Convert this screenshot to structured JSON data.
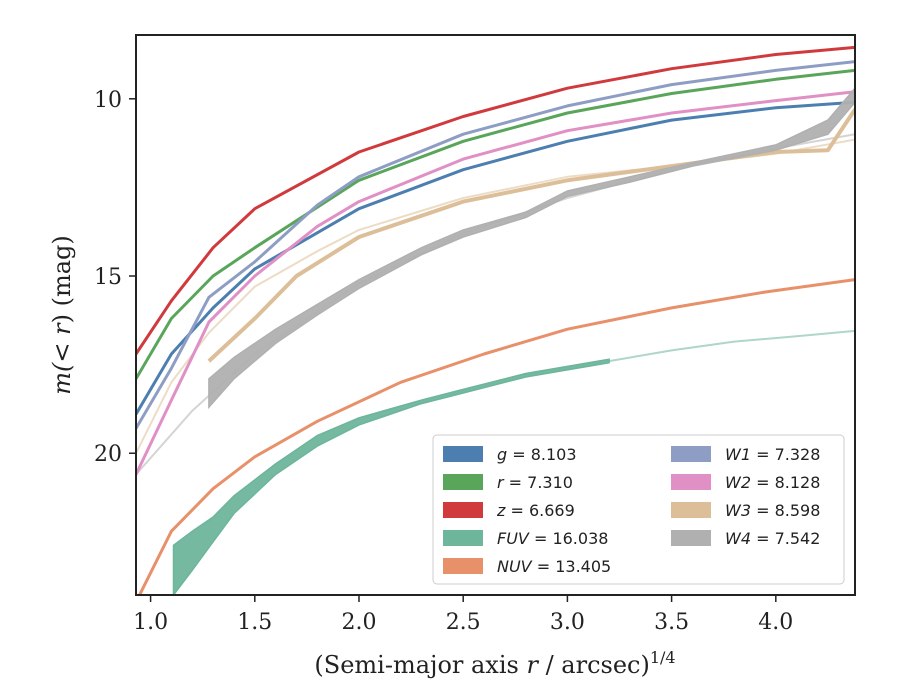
{
  "chart_data": {
    "type": "line",
    "xlabel_prefix": "(Semi-major axis ",
    "xlabel_var": "r",
    "xlabel_mid": " / arcsec)",
    "xlabel_sup": "1/4",
    "ylabel_prefix": "m(",
    "ylabel_var": "< r",
    "ylabel_suffix": ") (mag)",
    "xlim": [
      0.93,
      4.38
    ],
    "ylim": [
      24.0,
      8.2
    ],
    "y_inverted": true,
    "xticks": [
      1.0,
      1.5,
      2.0,
      2.5,
      3.0,
      3.5,
      4.0
    ],
    "xtick_labels": [
      "1.0",
      "1.5",
      "2.0",
      "2.5",
      "3.0",
      "3.5",
      "4.0"
    ],
    "yticks": [
      10,
      15,
      20
    ],
    "ytick_labels": [
      "10",
      "15",
      "20"
    ],
    "grid": false,
    "legend_placement": "lower-right",
    "legend_columns": 2,
    "series": [
      {
        "name": "g",
        "label_rest": " = 8.103",
        "color": "#4c7fb0",
        "width": 3,
        "faint": [
          [
            0.93,
            18.9
          ],
          [
            1.1,
            17.2
          ],
          [
            1.3,
            15.9
          ],
          [
            1.5,
            14.8
          ],
          [
            2.0,
            13.1
          ],
          [
            2.5,
            12.0
          ],
          [
            3.0,
            11.2
          ],
          [
            3.5,
            10.6
          ],
          [
            4.0,
            10.25
          ],
          [
            4.38,
            10.1
          ]
        ]
      },
      {
        "name": "r",
        "label_rest": " = 7.310",
        "color": "#59a55a",
        "width": 3,
        "faint": [
          [
            0.93,
            17.9
          ],
          [
            1.1,
            16.2
          ],
          [
            1.3,
            15.0
          ],
          [
            1.5,
            14.2
          ],
          [
            2.0,
            12.3
          ],
          [
            2.5,
            11.2
          ],
          [
            3.0,
            10.4
          ],
          [
            3.5,
            9.85
          ],
          [
            4.0,
            9.45
          ],
          [
            4.38,
            9.2
          ]
        ]
      },
      {
        "name": "z",
        "label_rest": " = 6.669",
        "color": "#d03a3d",
        "width": 3,
        "faint": [
          [
            0.93,
            17.2
          ],
          [
            1.1,
            15.7
          ],
          [
            1.3,
            14.2
          ],
          [
            1.5,
            13.1
          ],
          [
            2.0,
            11.5
          ],
          [
            2.5,
            10.5
          ],
          [
            3.0,
            9.7
          ],
          [
            3.5,
            9.15
          ],
          [
            4.0,
            8.75
          ],
          [
            4.38,
            8.55
          ]
        ]
      },
      {
        "name": "FUV",
        "label_rest": " = 16.038",
        "color": "#6db59b",
        "width": 4,
        "band": [
          [
            1.11,
            22.6,
            24.0
          ],
          [
            1.2,
            22.2,
            23.3
          ],
          [
            1.3,
            21.8,
            22.5
          ],
          [
            1.4,
            21.2,
            21.7
          ],
          [
            1.6,
            20.3,
            20.6
          ],
          [
            1.8,
            19.5,
            19.8
          ],
          [
            2.0,
            19.0,
            19.2
          ],
          [
            2.3,
            18.5,
            18.6
          ],
          [
            2.5,
            18.2,
            18.3
          ],
          [
            2.8,
            17.75,
            17.85
          ],
          [
            3.2,
            17.35,
            17.45
          ]
        ],
        "faint": [
          [
            3.2,
            17.4
          ],
          [
            3.5,
            17.1
          ],
          [
            3.8,
            16.85
          ],
          [
            4.1,
            16.7
          ],
          [
            4.38,
            16.55
          ]
        ]
      },
      {
        "name": "NUV",
        "label_rest": " = 13.405",
        "color": "#e8906a",
        "width": 3,
        "faint": [
          [
            0.93,
            24.2
          ],
          [
            1.1,
            22.2
          ],
          [
            1.3,
            21.0
          ],
          [
            1.5,
            20.1
          ],
          [
            1.8,
            19.1
          ],
          [
            2.2,
            18.0
          ],
          [
            2.6,
            17.2
          ],
          [
            3.0,
            16.5
          ],
          [
            3.5,
            15.9
          ],
          [
            3.95,
            15.45
          ],
          [
            4.38,
            15.1
          ]
        ]
      },
      {
        "name": "W1",
        "label_rest": " = 7.328",
        "color": "#8e9dc4",
        "width": 3,
        "faint": [
          [
            0.93,
            19.3
          ],
          [
            1.1,
            17.6
          ],
          [
            1.28,
            15.6
          ],
          [
            1.5,
            14.6
          ],
          [
            1.8,
            13.0
          ],
          [
            2.0,
            12.2
          ],
          [
            2.5,
            11.0
          ],
          [
            3.0,
            10.2
          ],
          [
            3.5,
            9.6
          ],
          [
            4.0,
            9.2
          ],
          [
            4.38,
            8.95
          ]
        ]
      },
      {
        "name": "W2",
        "label_rest": " = 8.128",
        "color": "#e090c4",
        "width": 3,
        "faint": [
          [
            0.93,
            20.6
          ],
          [
            1.1,
            18.5
          ],
          [
            1.28,
            16.3
          ],
          [
            1.5,
            15.0
          ],
          [
            1.8,
            13.6
          ],
          [
            2.0,
            12.9
          ],
          [
            2.5,
            11.7
          ],
          [
            3.0,
            10.9
          ],
          [
            3.5,
            10.4
          ],
          [
            4.0,
            10.05
          ],
          [
            4.38,
            9.8
          ]
        ]
      },
      {
        "name": "W3",
        "label_rest": " = 8.598",
        "color": "#dcbf98",
        "width": 4,
        "faint": [
          [
            0.93,
            20.0
          ],
          [
            1.1,
            18.0
          ],
          [
            1.28,
            16.6
          ],
          [
            1.5,
            15.3
          ],
          [
            1.8,
            14.3
          ],
          [
            2.0,
            13.7
          ],
          [
            2.5,
            12.8
          ],
          [
            3.0,
            12.2
          ],
          [
            3.5,
            11.9
          ],
          [
            4.0,
            11.55
          ],
          [
            4.38,
            11.15
          ]
        ],
        "thick": [
          [
            1.28,
            17.4
          ],
          [
            1.5,
            16.2
          ],
          [
            1.7,
            15.0
          ],
          [
            2.0,
            13.9
          ],
          [
            2.5,
            12.9
          ],
          [
            3.0,
            12.3
          ],
          [
            3.5,
            11.9
          ],
          [
            4.0,
            11.5
          ],
          [
            4.25,
            11.45
          ],
          [
            4.38,
            10.3
          ]
        ]
      },
      {
        "name": "W4",
        "label_rest": " = 7.542",
        "color": "#b0b0b0",
        "width": 4,
        "faint": [
          [
            0.93,
            20.6
          ],
          [
            1.2,
            18.8
          ],
          [
            1.5,
            17.2
          ],
          [
            2.0,
            15.2
          ],
          [
            2.5,
            13.8
          ],
          [
            3.0,
            12.8
          ],
          [
            3.5,
            12.0
          ],
          [
            4.0,
            11.4
          ],
          [
            4.38,
            11.0
          ]
        ],
        "band": [
          [
            1.28,
            17.9,
            18.7
          ],
          [
            1.4,
            17.3,
            17.9
          ],
          [
            1.6,
            16.5,
            16.9
          ],
          [
            1.8,
            15.8,
            16.1
          ],
          [
            2.0,
            15.1,
            15.35
          ],
          [
            2.3,
            14.2,
            14.4
          ],
          [
            2.5,
            13.7,
            13.9
          ],
          [
            2.8,
            13.2,
            13.35
          ],
          [
            3.0,
            12.6,
            12.75
          ],
          [
            3.3,
            12.2,
            12.35
          ],
          [
            3.6,
            11.8,
            11.9
          ],
          [
            4.0,
            11.3,
            11.45
          ],
          [
            4.25,
            10.6,
            11.0
          ],
          [
            4.38,
            9.7,
            10.1
          ]
        ]
      }
    ]
  }
}
